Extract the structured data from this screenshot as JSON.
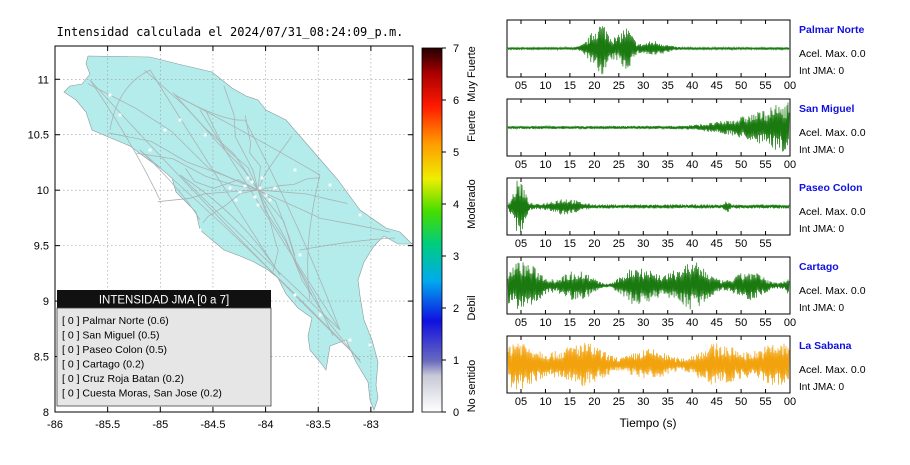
{
  "map": {
    "title": "Intensidad calculada el 2024/07/31_08:24:09_p.m.",
    "land_color": "#b4eceb",
    "xticks": [
      "-86",
      "-85.5",
      "-85",
      "-84.5",
      "-84",
      "-83.5",
      "-83"
    ],
    "yticks": [
      "11",
      "10.5",
      "10",
      "9.5",
      "9",
      "8.5",
      "8"
    ]
  },
  "colorbar": {
    "ticks": [
      "0",
      "1",
      "2",
      "3",
      "4",
      "5",
      "6",
      "7"
    ],
    "categories": [
      "No sentido",
      "Debil",
      "Moderado",
      "Fuerte",
      "Muy Fuerte"
    ]
  },
  "legend": {
    "title": "INTENSIDAD JMA [0 a 7]",
    "items": [
      "[ 0 ]  Palmar Norte (0.6)",
      "[ 0 ]  San Miguel (0.5)",
      "[ 0 ]  Paseo Colon (0.5)",
      "[ 0 ]  Cartago (0.2)",
      "[ 0 ]  Cruz Roja Batan (0.2)",
      "[ 0 ]  Cuesta Moras, San Jose (0.2)"
    ]
  },
  "chart_data": {
    "type": "line",
    "xlabel": "Tiempo (s)",
    "stations": [
      {
        "name": "Palmar Norte",
        "acel": "Acel. Max. 0.0",
        "int": "Int JMA: 0",
        "color": "#1a7a10",
        "ticks": [
          "05",
          "10",
          "15",
          "20",
          "25",
          "30",
          "35",
          "40",
          "45",
          "50",
          "55",
          "00"
        ]
      },
      {
        "name": "San Miguel",
        "acel": "Acel. Max. 0.0",
        "int": "Int JMA: 0",
        "color": "#1a7a10",
        "ticks": [
          "05",
          "10",
          "15",
          "20",
          "25",
          "30",
          "35",
          "40",
          "45",
          "50",
          "55",
          "00"
        ]
      },
      {
        "name": "Paseo Colon",
        "acel": "Acel. Max. 0.0",
        "int": "Int JMA: 0",
        "color": "#1a7a10",
        "ticks": [
          "05",
          "10",
          "15",
          "20",
          "25",
          "30",
          "35",
          "40",
          "45",
          "50",
          "55"
        ]
      },
      {
        "name": "Cartago",
        "acel": "Acel. Max. 0.0",
        "int": "Int JMA: 0",
        "color": "#1a7a10",
        "ticks": [
          "05",
          "10",
          "15",
          "20",
          "25",
          "30",
          "35",
          "40",
          "45",
          "50",
          "55",
          "00"
        ]
      },
      {
        "name": "La Sabana",
        "acel": "Acel. Max. 0.0",
        "int": "Int JMA: 0",
        "color": "#f2a20c",
        "ticks": [
          "05",
          "10",
          "15",
          "20",
          "25",
          "30",
          "35",
          "40",
          "45",
          "50",
          "55",
          "00"
        ]
      }
    ]
  }
}
